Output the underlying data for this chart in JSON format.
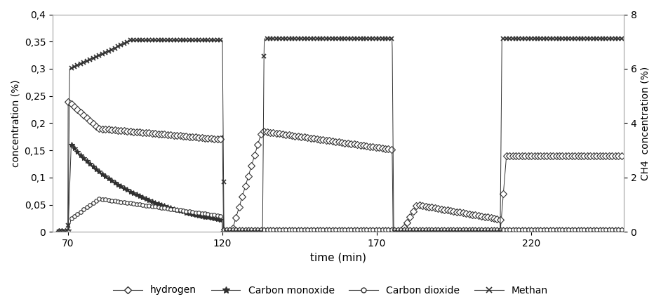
{
  "title": "",
  "xlabel": "time (min)",
  "ylabel_left": "concentration (%)",
  "ylabel_right": "CH4  concentration (%)",
  "xlim": [
    65,
    250
  ],
  "ylim_left": [
    0,
    0.4
  ],
  "ylim_right": [
    0,
    8
  ],
  "xticks": [
    70,
    120,
    170,
    220
  ],
  "yticks_left": [
    0,
    0.05,
    0.1,
    0.15,
    0.2,
    0.25,
    0.3,
    0.35,
    0.4
  ],
  "yticks_right": [
    0,
    2,
    4,
    6,
    8
  ],
  "legend_labels": [
    "hydrogen",
    "Carbon monoxide",
    "Carbon dioxide",
    "Methan"
  ],
  "bg_color": "#ffffff",
  "line_color": "#303030"
}
